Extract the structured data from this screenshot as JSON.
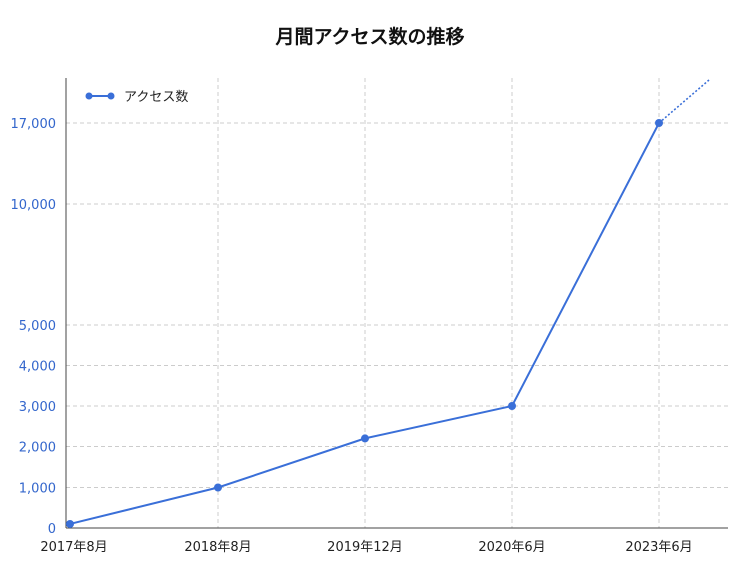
{
  "chart_data": {
    "type": "line",
    "title": "月間アクセス数の推移",
    "categories": [
      "2017年8月",
      "2018年8月",
      "2019年12月",
      "2020年6月",
      "2023年6月"
    ],
    "series": [
      {
        "name": "アクセス数",
        "color": "#3a6fd8",
        "values": [
          100,
          1000,
          2200,
          3000,
          17000
        ],
        "projection": "dotted line continuing upward beyond 2023年6月"
      }
    ],
    "y_ticks": [
      0,
      1000,
      2000,
      3000,
      4000,
      5000,
      10000,
      17000
    ],
    "y_tick_labels": [
      "0",
      "1,000",
      "2,000",
      "3,000",
      "4,000",
      "5,000",
      "10,000",
      "17,000"
    ],
    "y_scale": "piecewise (compressed above 5,000)",
    "grid": true,
    "legend_position": "top-left"
  }
}
